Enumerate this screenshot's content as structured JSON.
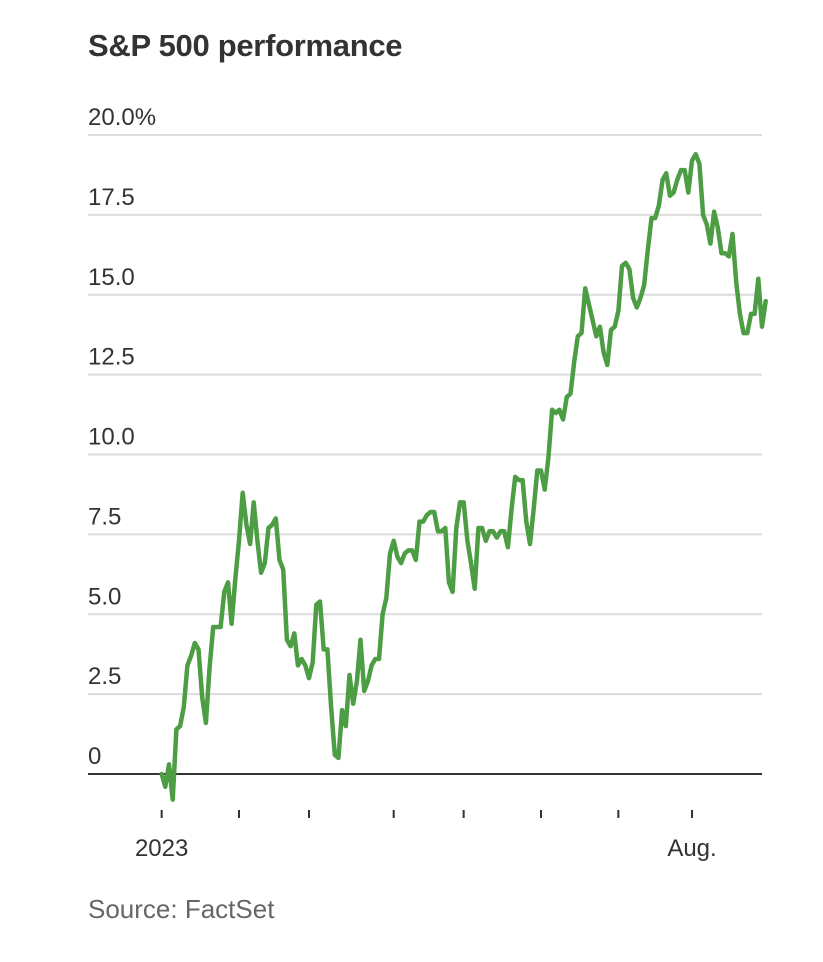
{
  "chart_data": {
    "type": "line",
    "title": "S&P 500 performance",
    "source": "Source: FactSet",
    "xlabel": "",
    "ylabel": "",
    "ylim": [
      -1.5,
      20
    ],
    "y_ticks": [
      {
        "value": 20,
        "label": "20.0%"
      },
      {
        "value": 17.5,
        "label": "17.5"
      },
      {
        "value": 15,
        "label": "15.0"
      },
      {
        "value": 12.5,
        "label": "12.5"
      },
      {
        "value": 10,
        "label": "10.0"
      },
      {
        "value": 7.5,
        "label": "7.5"
      },
      {
        "value": 5,
        "label": "5.0"
      },
      {
        "value": 2.5,
        "label": "2.5"
      },
      {
        "value": 0,
        "label": "0"
      }
    ],
    "x_labels": [
      {
        "index": 0,
        "label": "2023"
      },
      {
        "index": 144,
        "label": "Aug."
      }
    ],
    "x_ticks": [
      0,
      21,
      40,
      63,
      82,
      103,
      124,
      144
    ],
    "x_range": [
      -20,
      163
    ],
    "grid": true,
    "legend": "none",
    "color": "#4d9d45",
    "series": [
      {
        "values": [
          0.0,
          -0.4,
          0.3,
          -0.8,
          1.4,
          1.5,
          2.1,
          3.4,
          3.7,
          4.1,
          3.9,
          2.4,
          1.6,
          3.3,
          4.6,
          4.6,
          4.6,
          5.7,
          6.0,
          4.7,
          6.1,
          7.3,
          8.8,
          7.8,
          7.2,
          8.5,
          7.3,
          6.3,
          6.6,
          7.7,
          7.8,
          8.0,
          6.7,
          6.4,
          4.2,
          4.0,
          4.4,
          3.4,
          3.6,
          3.4,
          3.0,
          3.5,
          5.3,
          5.4,
          3.9,
          3.9,
          2.1,
          0.6,
          0.5,
          2.0,
          1.5,
          3.1,
          2.2,
          2.9,
          4.2,
          2.6,
          2.9,
          3.4,
          3.6,
          3.6,
          5.0,
          5.5,
          6.9,
          7.3,
          6.8,
          6.6,
          6.9,
          7.0,
          7.0,
          6.7,
          7.9,
          7.9,
          8.1,
          8.2,
          8.2,
          7.6,
          7.6,
          7.7,
          6.0,
          5.7,
          7.7,
          8.5,
          8.5,
          7.3,
          6.6,
          5.8,
          7.7,
          7.7,
          7.3,
          7.6,
          7.6,
          7.4,
          7.6,
          7.6,
          7.1,
          8.3,
          9.3,
          9.2,
          9.2,
          7.9,
          7.2,
          8.3,
          9.5,
          9.5,
          8.9,
          9.9,
          11.4,
          11.3,
          11.4,
          11.1,
          11.8,
          11.9,
          12.9,
          13.7,
          13.8,
          15.2,
          14.7,
          14.2,
          13.7,
          14.0,
          13.2,
          12.8,
          13.9,
          14.0,
          14.5,
          15.9,
          16.0,
          15.8,
          14.9,
          14.6,
          14.9,
          15.3,
          16.4,
          17.4,
          17.4,
          17.8,
          18.6,
          18.8,
          18.1,
          18.2,
          18.6,
          18.9,
          18.9,
          18.2,
          19.2,
          19.4,
          19.1,
          17.5,
          17.2,
          16.6,
          17.6,
          17.1,
          16.3,
          16.3,
          16.2,
          16.9,
          15.4,
          14.4,
          13.8,
          13.8,
          14.4,
          14.4,
          15.5,
          14.0,
          14.8
        ]
      }
    ]
  }
}
